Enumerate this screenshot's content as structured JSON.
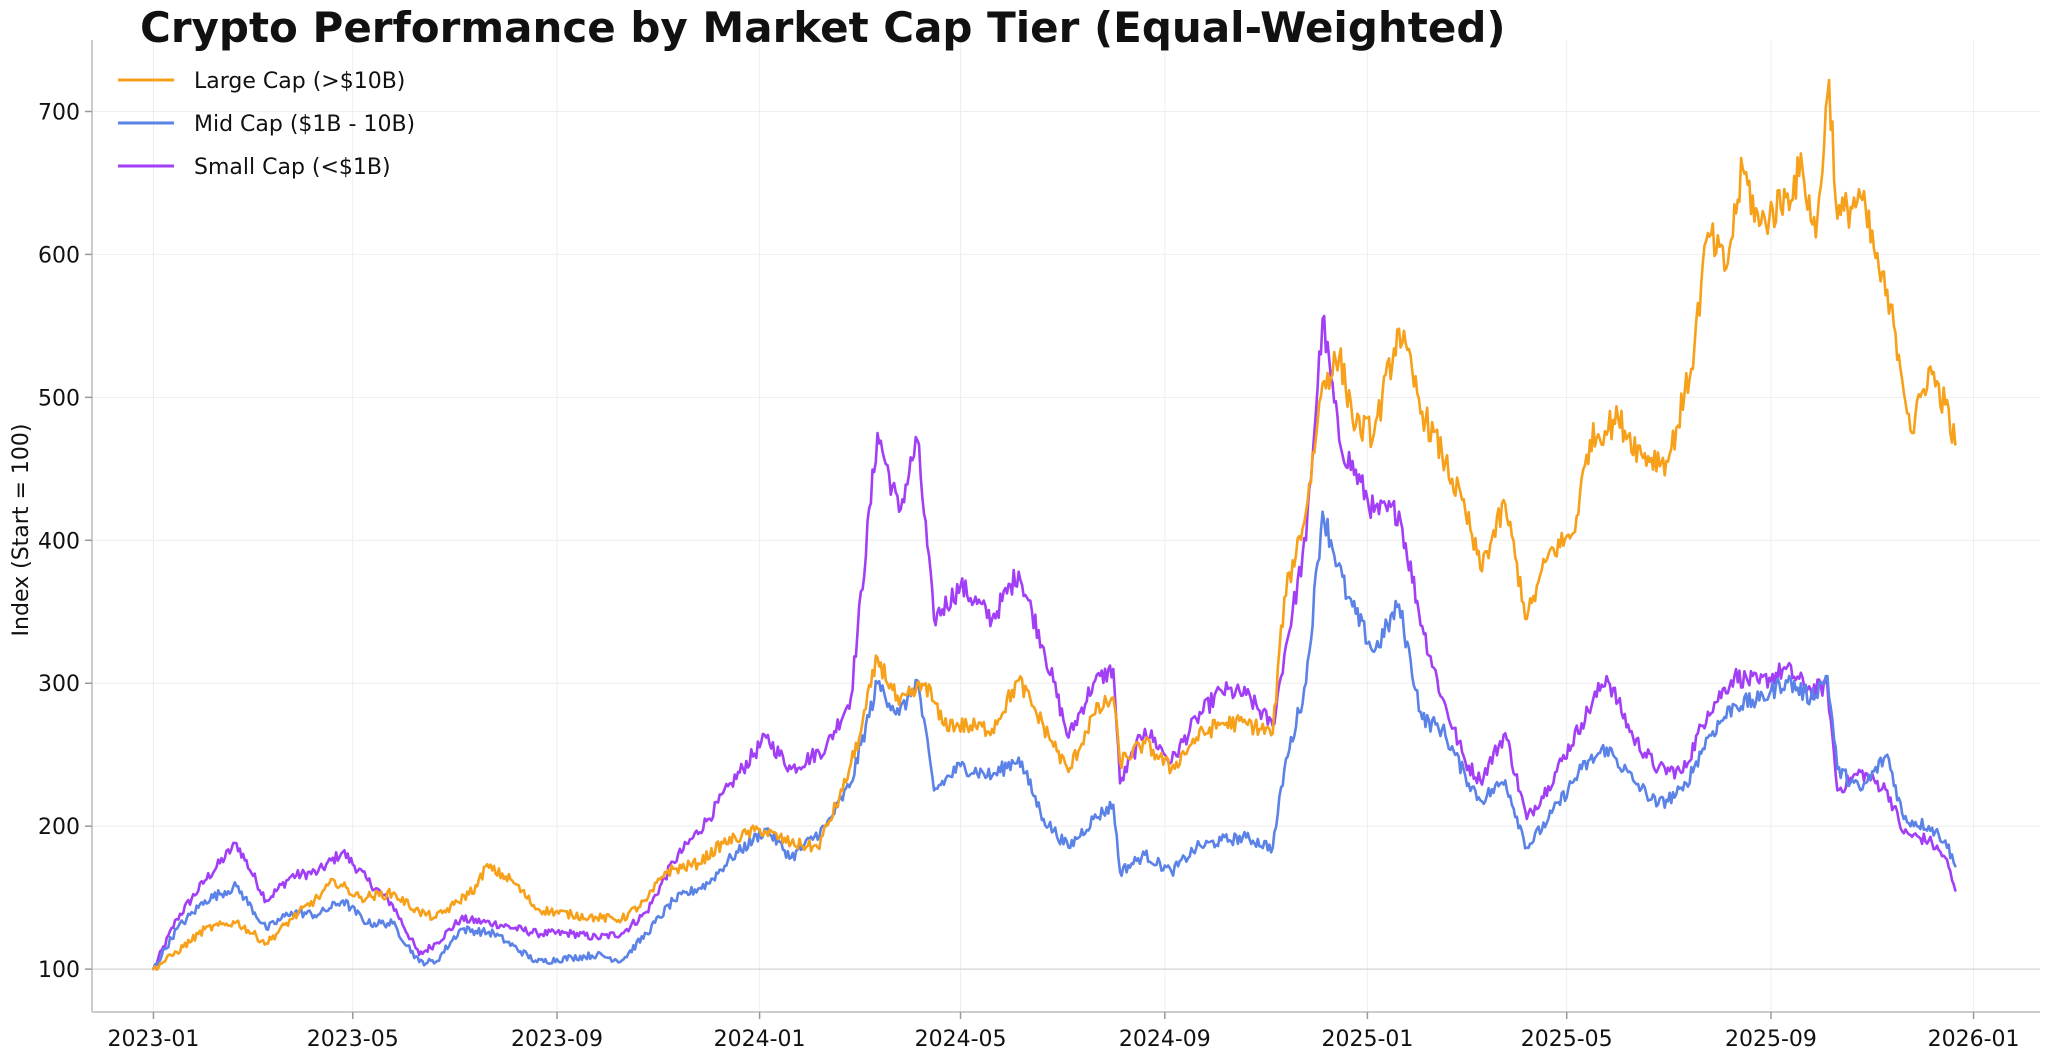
{
  "chart_data": {
    "type": "line",
    "title": "Crypto Performance by Market Cap Tier (Equal-Weighted)",
    "xlabel": "",
    "ylabel": "Index (Start = 100)",
    "xlim": [
      "2022-11-25",
      "2026-02-10"
    ],
    "ylim": [
      70,
      750
    ],
    "x_ticks": [
      "2023-01",
      "2023-05",
      "2023-09",
      "2024-01",
      "2024-05",
      "2024-09",
      "2025-01",
      "2025-05",
      "2025-09",
      "2026-01"
    ],
    "y_ticks": [
      100,
      200,
      300,
      400,
      500,
      600,
      700
    ],
    "grid": true,
    "baseline": 100,
    "legend_position": "top-left",
    "series": [
      {
        "name": "Large Cap (>$10B)",
        "color": "#F7A01A",
        "points": [
          [
            "2023-01-01",
            100
          ],
          [
            "2023-01-15",
            112
          ],
          [
            "2023-02-01",
            128
          ],
          [
            "2023-02-20",
            133
          ],
          [
            "2023-03-10",
            118
          ],
          [
            "2023-03-25",
            135
          ],
          [
            "2023-04-10",
            150
          ],
          [
            "2023-04-20",
            162
          ],
          [
            "2023-05-05",
            150
          ],
          [
            "2023-05-25",
            153
          ],
          [
            "2023-06-10",
            140
          ],
          [
            "2023-06-20",
            136
          ],
          [
            "2023-07-01",
            145
          ],
          [
            "2023-07-15",
            158
          ],
          [
            "2023-07-20",
            172
          ],
          [
            "2023-08-05",
            162
          ],
          [
            "2023-08-20",
            142
          ],
          [
            "2023-09-10",
            138
          ],
          [
            "2023-09-25",
            136
          ],
          [
            "2023-10-10",
            135
          ],
          [
            "2023-10-25",
            148
          ],
          [
            "2023-11-05",
            168
          ],
          [
            "2023-11-25",
            174
          ],
          [
            "2023-12-10",
            188
          ],
          [
            "2024-01-01",
            198
          ],
          [
            "2024-01-20",
            188
          ],
          [
            "2024-02-05",
            185
          ],
          [
            "2024-02-20",
            225
          ],
          [
            "2024-03-01",
            262
          ],
          [
            "2024-03-12",
            318
          ],
          [
            "2024-03-25",
            285
          ],
          [
            "2024-04-10",
            300
          ],
          [
            "2024-04-20",
            272
          ],
          [
            "2024-05-05",
            270
          ],
          [
            "2024-05-20",
            268
          ],
          [
            "2024-06-05",
            302
          ],
          [
            "2024-06-20",
            270
          ],
          [
            "2024-07-05",
            238
          ],
          [
            "2024-07-20",
            278
          ],
          [
            "2024-08-01",
            290
          ],
          [
            "2024-08-05",
            245
          ],
          [
            "2024-08-20",
            258
          ],
          [
            "2024-09-05",
            240
          ],
          [
            "2024-09-20",
            262
          ],
          [
            "2024-10-05",
            272
          ],
          [
            "2024-10-20",
            272
          ],
          [
            "2024-11-05",
            265
          ],
          [
            "2024-11-12",
            360
          ],
          [
            "2024-11-25",
            420
          ],
          [
            "2024-12-05",
            510
          ],
          [
            "2024-12-15",
            528
          ],
          [
            "2024-12-25",
            480
          ],
          [
            "2025-01-05",
            475
          ],
          [
            "2025-01-20",
            548
          ],
          [
            "2025-02-03",
            490
          ],
          [
            "2025-02-15",
            460
          ],
          [
            "2025-03-01",
            420
          ],
          [
            "2025-03-10",
            380
          ],
          [
            "2025-03-25",
            425
          ],
          [
            "2025-04-07",
            345
          ],
          [
            "2025-04-20",
            390
          ],
          [
            "2025-05-05",
            405
          ],
          [
            "2025-05-15",
            470
          ],
          [
            "2025-06-01",
            485
          ],
          [
            "2025-06-15",
            460
          ],
          [
            "2025-07-01",
            455
          ],
          [
            "2025-07-15",
            520
          ],
          [
            "2025-07-25",
            615
          ],
          [
            "2025-08-05",
            590
          ],
          [
            "2025-08-15",
            660
          ],
          [
            "2025-08-25",
            620
          ],
          [
            "2025-09-10",
            640
          ],
          [
            "2025-09-20",
            660
          ],
          [
            "2025-09-28",
            612
          ],
          [
            "2025-10-06",
            722
          ],
          [
            "2025-10-11",
            625
          ],
          [
            "2025-10-25",
            640
          ],
          [
            "2025-11-05",
            590
          ],
          [
            "2025-11-15",
            545
          ],
          [
            "2025-11-25",
            475
          ],
          [
            "2025-12-05",
            520
          ],
          [
            "2025-12-15",
            495
          ],
          [
            "2025-12-21",
            467
          ]
        ]
      },
      {
        "name": "Mid Cap ($1B - 10B)",
        "color": "#5B82E6",
        "points": [
          [
            "2023-01-01",
            100
          ],
          [
            "2023-01-15",
            128
          ],
          [
            "2023-02-01",
            148
          ],
          [
            "2023-02-20",
            158
          ],
          [
            "2023-03-10",
            128
          ],
          [
            "2023-03-25",
            140
          ],
          [
            "2023-04-10",
            138
          ],
          [
            "2023-04-25",
            148
          ],
          [
            "2023-05-10",
            132
          ],
          [
            "2023-05-25",
            132
          ],
          [
            "2023-06-10",
            105
          ],
          [
            "2023-06-20",
            105
          ],
          [
            "2023-07-05",
            128
          ],
          [
            "2023-07-25",
            125
          ],
          [
            "2023-08-20",
            105
          ],
          [
            "2023-09-10",
            108
          ],
          [
            "2023-09-25",
            110
          ],
          [
            "2023-10-10",
            106
          ],
          [
            "2023-10-25",
            125
          ],
          [
            "2023-11-10",
            148
          ],
          [
            "2023-12-01",
            160
          ],
          [
            "2023-12-15",
            178
          ],
          [
            "2024-01-05",
            198
          ],
          [
            "2024-01-20",
            178
          ],
          [
            "2024-02-10",
            200
          ],
          [
            "2024-02-25",
            230
          ],
          [
            "2024-03-12",
            300
          ],
          [
            "2024-03-25",
            278
          ],
          [
            "2024-04-05",
            302
          ],
          [
            "2024-04-15",
            225
          ],
          [
            "2024-05-01",
            242
          ],
          [
            "2024-05-20",
            235
          ],
          [
            "2024-06-05",
            248
          ],
          [
            "2024-06-20",
            205
          ],
          [
            "2024-07-05",
            185
          ],
          [
            "2024-07-20",
            205
          ],
          [
            "2024-08-01",
            215
          ],
          [
            "2024-08-05",
            168
          ],
          [
            "2024-08-20",
            180
          ],
          [
            "2024-09-05",
            168
          ],
          [
            "2024-09-20",
            185
          ],
          [
            "2024-10-05",
            190
          ],
          [
            "2024-10-20",
            192
          ],
          [
            "2024-11-05",
            185
          ],
          [
            "2024-11-12",
            240
          ],
          [
            "2024-11-25",
            300
          ],
          [
            "2024-12-05",
            420
          ],
          [
            "2024-12-20",
            360
          ],
          [
            "2025-01-05",
            322
          ],
          [
            "2025-01-20",
            355
          ],
          [
            "2025-02-03",
            275
          ],
          [
            "2025-02-15",
            268
          ],
          [
            "2025-03-01",
            235
          ],
          [
            "2025-03-10",
            218
          ],
          [
            "2025-03-25",
            232
          ],
          [
            "2025-04-07",
            185
          ],
          [
            "2025-04-20",
            205
          ],
          [
            "2025-05-10",
            240
          ],
          [
            "2025-05-25",
            255
          ],
          [
            "2025-06-10",
            232
          ],
          [
            "2025-06-25",
            215
          ],
          [
            "2025-07-10",
            225
          ],
          [
            "2025-07-25",
            262
          ],
          [
            "2025-08-10",
            285
          ],
          [
            "2025-08-25",
            288
          ],
          [
            "2025-09-10",
            302
          ],
          [
            "2025-09-25",
            290
          ],
          [
            "2025-10-05",
            305
          ],
          [
            "2025-10-11",
            240
          ],
          [
            "2025-10-25",
            225
          ],
          [
            "2025-11-10",
            250
          ],
          [
            "2025-11-20",
            205
          ],
          [
            "2025-12-05",
            200
          ],
          [
            "2025-12-15",
            190
          ],
          [
            "2025-12-21",
            172
          ]
        ]
      },
      {
        "name": "Small Cap (<$1B)",
        "color": "#A23EF5",
        "points": [
          [
            "2023-01-01",
            100
          ],
          [
            "2023-01-15",
            135
          ],
          [
            "2023-02-01",
            162
          ],
          [
            "2023-02-20",
            188
          ],
          [
            "2023-03-10",
            148
          ],
          [
            "2023-03-25",
            165
          ],
          [
            "2023-04-10",
            168
          ],
          [
            "2023-04-25",
            182
          ],
          [
            "2023-05-10",
            162
          ],
          [
            "2023-05-25",
            145
          ],
          [
            "2023-06-10",
            110
          ],
          [
            "2023-06-20",
            118
          ],
          [
            "2023-07-05",
            135
          ],
          [
            "2023-07-25",
            132
          ],
          [
            "2023-08-20",
            125
          ],
          [
            "2023-09-10",
            125
          ],
          [
            "2023-09-25",
            122
          ],
          [
            "2023-10-10",
            125
          ],
          [
            "2023-10-25",
            140
          ],
          [
            "2023-11-10",
            175
          ],
          [
            "2023-12-01",
            205
          ],
          [
            "2023-12-15",
            230
          ],
          [
            "2024-01-05",
            262
          ],
          [
            "2024-01-20",
            240
          ],
          [
            "2024-02-10",
            255
          ],
          [
            "2024-02-25",
            290
          ],
          [
            "2024-03-12",
            475
          ],
          [
            "2024-03-25",
            420
          ],
          [
            "2024-04-05",
            470
          ],
          [
            "2024-04-15",
            345
          ],
          [
            "2024-05-01",
            368
          ],
          [
            "2024-05-20",
            345
          ],
          [
            "2024-06-05",
            378
          ],
          [
            "2024-06-20",
            325
          ],
          [
            "2024-07-05",
            262
          ],
          [
            "2024-07-20",
            300
          ],
          [
            "2024-08-01",
            310
          ],
          [
            "2024-08-05",
            230
          ],
          [
            "2024-08-20",
            268
          ],
          [
            "2024-09-05",
            245
          ],
          [
            "2024-09-20",
            275
          ],
          [
            "2024-10-05",
            295
          ],
          [
            "2024-10-20",
            292
          ],
          [
            "2024-11-05",
            270
          ],
          [
            "2024-11-12",
            320
          ],
          [
            "2024-11-25",
            400
          ],
          [
            "2024-12-05",
            555
          ],
          [
            "2024-12-15",
            470
          ],
          [
            "2025-01-05",
            420
          ],
          [
            "2025-01-20",
            420
          ],
          [
            "2025-02-03",
            340
          ],
          [
            "2025-02-15",
            290
          ],
          [
            "2025-03-01",
            245
          ],
          [
            "2025-03-10",
            232
          ],
          [
            "2025-03-25",
            265
          ],
          [
            "2025-04-07",
            205
          ],
          [
            "2025-04-20",
            228
          ],
          [
            "2025-05-10",
            272
          ],
          [
            "2025-05-25",
            305
          ],
          [
            "2025-06-10",
            262
          ],
          [
            "2025-06-25",
            240
          ],
          [
            "2025-07-10",
            238
          ],
          [
            "2025-07-25",
            280
          ],
          [
            "2025-08-10",
            305
          ],
          [
            "2025-08-25",
            300
          ],
          [
            "2025-09-10",
            310
          ],
          [
            "2025-09-25",
            295
          ],
          [
            "2025-10-05",
            298
          ],
          [
            "2025-10-11",
            225
          ],
          [
            "2025-10-25",
            238
          ],
          [
            "2025-11-10",
            225
          ],
          [
            "2025-11-20",
            195
          ],
          [
            "2025-12-05",
            190
          ],
          [
            "2025-12-15",
            178
          ],
          [
            "2025-12-21",
            155
          ]
        ]
      }
    ]
  }
}
